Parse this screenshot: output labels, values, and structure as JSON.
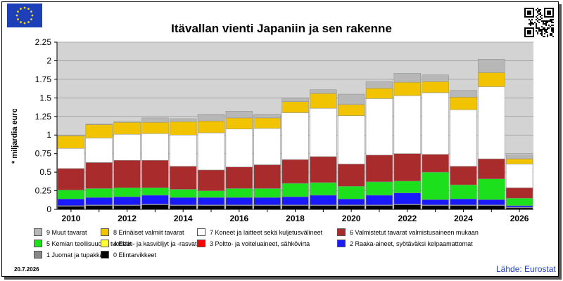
{
  "title": "Itävallan vienti Japaniin ja sen rakenne",
  "ylabel": "* miljardia euroa",
  "date": "20.7.2026",
  "source": "Lähde: Eurostat",
  "colors": {
    "c9": "#b7b7b7",
    "c8": "#f2c300",
    "c7": "#ffffff",
    "c6": "#aa2b2b",
    "c5": "#1de01d",
    "c4": "#ffff33",
    "c3": "#ff0000",
    "c2": "#1a1aff",
    "c1": "#888888",
    "c0": "#000000",
    "plot_bg": "#d3d3d3",
    "source_text": "#1f3fbf"
  },
  "legend": [
    {
      "label": "9 Muut tavarat",
      "color_key": "c9"
    },
    {
      "label": "8 Erinäiset valmiit tavarat",
      "color_key": "c8"
    },
    {
      "label": "7 Koneet ja laitteet sekä kuljetusvälineet",
      "color_key": "c7"
    },
    {
      "label": "6 Valmistetut tavarat valmistusaineen mukaan",
      "color_key": "c6"
    },
    {
      "label": "5 Kemian teollisuuden tuotteet",
      "color_key": "c5"
    },
    {
      "label": "4 Eläin- ja kasviöljyt ja -rasvat",
      "color_key": "c4"
    },
    {
      "label": "3 Poltto- ja voiteluaineet, sähkövirta",
      "color_key": "c3"
    },
    {
      "label": "2 Raaka-aineet, syötäväksi kelpaamattomat",
      "color_key": "c2"
    },
    {
      "label": "1 Juomat ja tupakka",
      "color_key": "c1"
    },
    {
      "label": "0 Elintarvikkeet",
      "color_key": "c0"
    }
  ],
  "chart_data": {
    "type": "bar",
    "stacked": true,
    "title": "Itävallan vienti Japaniin ja sen rakenne",
    "xlabel": "",
    "ylabel": "* miljardia euroa",
    "ylim": [
      0,
      2.25
    ],
    "yticks": [
      "0",
      "0.25",
      "0.5",
      "0.75",
      "1",
      "1.25",
      "1.5",
      "1.75",
      "2",
      "2.25"
    ],
    "xtick_labels": [
      "2010",
      "2012",
      "2014",
      "2016",
      "2018",
      "2020",
      "2022",
      "2024",
      "2026"
    ],
    "grid": true,
    "categories": [
      "2010",
      "2011",
      "2012",
      "2013",
      "2014",
      "2015",
      "2016",
      "2017",
      "2018",
      "2019",
      "2020",
      "2021",
      "2022",
      "2023",
      "2024",
      "2025",
      "2026"
    ],
    "series": [
      {
        "name": "0 Elintarvikkeet",
        "color_key": "c0",
        "values": [
          0.04,
          0.05,
          0.05,
          0.06,
          0.05,
          0.05,
          0.05,
          0.05,
          0.05,
          0.05,
          0.05,
          0.05,
          0.06,
          0.05,
          0.05,
          0.05,
          0.02
        ]
      },
      {
        "name": "1 Juomat ja tupakka",
        "color_key": "c1",
        "values": [
          0.01,
          0.01,
          0.01,
          0.01,
          0.01,
          0.01,
          0.01,
          0.01,
          0.01,
          0.01,
          0.01,
          0.01,
          0.01,
          0.01,
          0.01,
          0.01,
          0.01
        ]
      },
      {
        "name": "2 Raaka-aineet, syötäväksi kelpaamattomat",
        "color_key": "c2",
        "values": [
          0.09,
          0.1,
          0.11,
          0.12,
          0.1,
          0.1,
          0.1,
          0.1,
          0.11,
          0.13,
          0.08,
          0.13,
          0.15,
          0.07,
          0.08,
          0.07,
          0.02
        ]
      },
      {
        "name": "3 Poltto- ja voiteluaineet, sähkövirta",
        "color_key": "c3",
        "values": [
          0,
          0,
          0,
          0,
          0,
          0,
          0,
          0,
          0,
          0,
          0,
          0,
          0,
          0,
          0,
          0,
          0
        ]
      },
      {
        "name": "4 Eläin- ja kasviöljyt ja -rasvat",
        "color_key": "c4",
        "values": [
          0,
          0,
          0,
          0,
          0,
          0,
          0,
          0,
          0,
          0,
          0,
          0,
          0,
          0,
          0,
          0,
          0
        ]
      },
      {
        "name": "5 Kemian teollisuuden tuotteet",
        "color_key": "c5",
        "values": [
          0.12,
          0.12,
          0.12,
          0.1,
          0.11,
          0.09,
          0.12,
          0.12,
          0.18,
          0.17,
          0.17,
          0.18,
          0.16,
          0.37,
          0.19,
          0.28,
          0.1
        ]
      },
      {
        "name": "6 Valmistetut tavarat valmistusaineen mukaan",
        "color_key": "c6",
        "values": [
          0.29,
          0.35,
          0.37,
          0.37,
          0.31,
          0.28,
          0.29,
          0.32,
          0.32,
          0.35,
          0.3,
          0.36,
          0.37,
          0.24,
          0.25,
          0.27,
          0.14
        ]
      },
      {
        "name": "7 Koneet ja laitteet sekä kuljetusvälineet",
        "color_key": "c7",
        "values": [
          0.27,
          0.33,
          0.35,
          0.36,
          0.42,
          0.5,
          0.51,
          0.49,
          0.63,
          0.65,
          0.65,
          0.76,
          0.78,
          0.83,
          0.76,
          0.97,
          0.32
        ]
      },
      {
        "name": "8 Erinäiset valmiit tavarat",
        "color_key": "c8",
        "values": [
          0.17,
          0.18,
          0.16,
          0.15,
          0.18,
          0.16,
          0.15,
          0.14,
          0.15,
          0.2,
          0.15,
          0.14,
          0.18,
          0.15,
          0.17,
          0.19,
          0.07
        ]
      },
      {
        "name": "9 Muut tavarat",
        "color_key": "c9",
        "values": [
          0.01,
          0.01,
          0.01,
          0.06,
          0.04,
          0.09,
          0.09,
          0.05,
          0.05,
          0.05,
          0.14,
          0.09,
          0.12,
          0.09,
          0.09,
          0.18,
          0.05
        ]
      }
    ]
  }
}
